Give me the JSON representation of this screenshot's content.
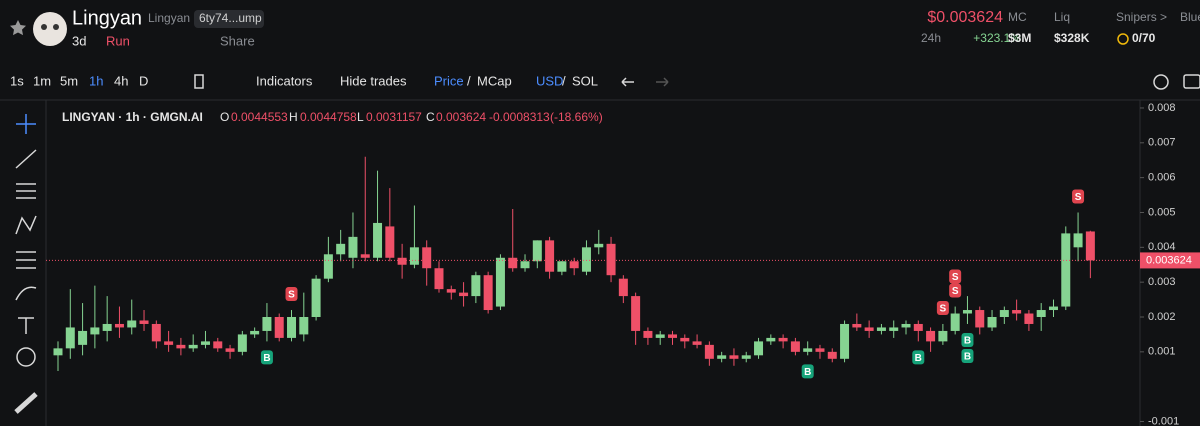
{
  "header": {
    "token_name": "Lingyan",
    "symbol": "Lingyan",
    "address": "6ty74...ump",
    "age": "3d",
    "run": "Run",
    "share": "Share",
    "price": "$0.003624",
    "change_period": "24h",
    "change": "+323.1%",
    "mc_label": "MC",
    "mc": "$3M",
    "liq_label": "Liq",
    "liq": "$328K",
    "snipers_label": "Snipers >",
    "snipers": "0/70",
    "blue_label": "Blue"
  },
  "toolbar": {
    "intervals": [
      "1s",
      "1m",
      "5m",
      "1h",
      "4h",
      "D"
    ],
    "indicators": "Indicators",
    "hide_trades": "Hide trades",
    "price": "Price",
    "separator": "/",
    "mcap": "MCap",
    "usd": "USD",
    "sol": "SOL"
  },
  "legend": {
    "title": "LINGYAN · 1h · GMGN.AI",
    "o_label": "O",
    "o": "0.0044553",
    "h_label": "H",
    "h": "0.0044758",
    "l_label": "L",
    "l": "0.0031157",
    "c_label": "C",
    "c": "0.003624",
    "change": "-0.0008313",
    "change_pct": "(-18.66%)"
  },
  "chart_data": {
    "type": "candlestick",
    "color_up": "#86d492",
    "color_down": "#ef5068",
    "open": [
      0.0009,
      0.0011,
      0.0012,
      0.0015,
      0.0016,
      0.0018,
      0.0017,
      0.0019,
      0.0018,
      0.0013,
      0.0012,
      0.0011,
      0.0012,
      0.0013,
      0.0011,
      0.001,
      0.0015,
      0.0016,
      0.002,
      0.0014,
      0.0015,
      0.002,
      0.0031,
      0.0038,
      0.0037,
      0.0038,
      0.0037,
      0.0046,
      0.0037,
      0.0035,
      0.004,
      0.0034,
      0.0028,
      0.0027,
      0.0026,
      0.0032,
      0.0023,
      0.0037,
      0.0034,
      0.0036,
      0.0042,
      0.0033,
      0.0036,
      0.0033,
      0.004,
      0.0041,
      0.0031,
      0.0026,
      0.0016,
      0.0014,
      0.0015,
      0.0014,
      0.0013,
      0.0012,
      0.0008,
      0.0009,
      0.0008,
      0.0009,
      0.0013,
      0.0014,
      0.0013,
      0.001,
      0.0011,
      0.001,
      0.0008,
      0.0018,
      0.0017,
      0.0016,
      0.0016,
      0.0017,
      0.0018,
      0.0016,
      0.0013,
      0.0016,
      0.0021,
      0.0022,
      0.0017,
      0.002,
      0.0022,
      0.0021,
      0.002,
      0.0022,
      0.0023,
      0.004,
      0.0044553
    ],
    "high": [
      0.0013,
      0.0028,
      0.0024,
      0.0029,
      0.0026,
      0.0023,
      0.0025,
      0.0022,
      0.0019,
      0.0016,
      0.0014,
      0.0015,
      0.0016,
      0.0014,
      0.0012,
      0.0016,
      0.0017,
      0.0024,
      0.0021,
      0.0022,
      0.0027,
      0.0032,
      0.0043,
      0.0045,
      0.005,
      0.0066,
      0.0062,
      0.0057,
      0.0041,
      0.0052,
      0.0042,
      0.0036,
      0.0029,
      0.003,
      0.0033,
      0.0033,
      0.0038,
      0.0051,
      0.0038,
      0.0042,
      0.0043,
      0.0036,
      0.0037,
      0.0042,
      0.0045,
      0.0043,
      0.0032,
      0.0027,
      0.0017,
      0.0016,
      0.0016,
      0.0015,
      0.0015,
      0.0013,
      0.001,
      0.0011,
      0.001,
      0.0014,
      0.0015,
      0.0015,
      0.0014,
      0.0013,
      0.0012,
      0.0011,
      0.0019,
      0.0021,
      0.0019,
      0.0018,
      0.0019,
      0.0019,
      0.0019,
      0.0017,
      0.0018,
      0.0023,
      0.0026,
      0.0023,
      0.0022,
      0.0023,
      0.0025,
      0.0022,
      0.0024,
      0.0025,
      0.0046,
      0.005,
      0.0044758
    ],
    "low": [
      0.00045,
      0.0008,
      0.0009,
      0.0011,
      0.0013,
      0.0014,
      0.0015,
      0.0016,
      0.0011,
      0.001,
      0.0009,
      0.001,
      0.0011,
      0.001,
      0.0008,
      0.0009,
      0.0014,
      0.0013,
      0.0013,
      0.0013,
      0.0013,
      0.0019,
      0.003,
      0.0036,
      0.0034,
      0.0036,
      0.0036,
      0.0036,
      0.0031,
      0.0034,
      0.0029,
      0.0027,
      0.0025,
      0.0023,
      0.0024,
      0.0021,
      0.0022,
      0.0033,
      0.0033,
      0.0034,
      0.0031,
      0.0032,
      0.0032,
      0.0032,
      0.0038,
      0.003,
      0.0024,
      0.0012,
      0.0012,
      0.0012,
      0.0012,
      0.0011,
      0.0011,
      0.0006,
      0.0007,
      0.0006,
      0.0007,
      0.0008,
      0.0012,
      0.0011,
      0.0009,
      0.0009,
      0.0008,
      0.0007,
      0.0007,
      0.0016,
      0.0014,
      0.0015,
      0.0014,
      0.0015,
      0.0013,
      0.001,
      0.0012,
      0.0015,
      0.0018,
      0.0015,
      0.0016,
      0.0018,
      0.0019,
      0.0016,
      0.0016,
      0.002,
      0.0022,
      0.0036,
      0.0031157
    ],
    "close": [
      0.0011,
      0.0017,
      0.0016,
      0.0017,
      0.0018,
      0.0017,
      0.0019,
      0.0018,
      0.0013,
      0.0012,
      0.0011,
      0.0012,
      0.0013,
      0.0011,
      0.001,
      0.0015,
      0.0016,
      0.002,
      0.0014,
      0.002,
      0.002,
      0.0031,
      0.0038,
      0.0041,
      0.0043,
      0.0037,
      0.0047,
      0.0037,
      0.0035,
      0.004,
      0.0034,
      0.0028,
      0.0027,
      0.0026,
      0.0032,
      0.0022,
      0.0037,
      0.0034,
      0.0036,
      0.0042,
      0.0033,
      0.0036,
      0.0034,
      0.004,
      0.0041,
      0.0032,
      0.0026,
      0.0016,
      0.0014,
      0.0015,
      0.0014,
      0.0013,
      0.0012,
      0.0008,
      0.0009,
      0.0008,
      0.0009,
      0.0013,
      0.0014,
      0.0013,
      0.001,
      0.0011,
      0.001,
      0.0008,
      0.0018,
      0.0017,
      0.0016,
      0.0017,
      0.0017,
      0.0018,
      0.0016,
      0.0013,
      0.0016,
      0.0021,
      0.0022,
      0.0017,
      0.002,
      0.0022,
      0.0021,
      0.0018,
      0.0022,
      0.0023,
      0.0044,
      0.0044,
      0.003624
    ],
    "ylim": [
      -0.0011,
      0.0082
    ],
    "yticks": [
      0.008,
      0.007,
      0.006,
      0.005,
      0.004,
      0.003,
      0.002,
      0.001,
      -0.001
    ],
    "last_price": 0.003624,
    "markers": [
      {
        "label": "B",
        "candle": 17,
        "side": "below"
      },
      {
        "label": "S",
        "candle": 19,
        "side": "above"
      },
      {
        "label": "B",
        "candle": 61,
        "side": "below"
      },
      {
        "label": "B",
        "candle": 70,
        "side": "below"
      },
      {
        "label": "S",
        "candle": 72,
        "side": "above"
      },
      {
        "label": "B",
        "candle": 74,
        "side": "below"
      },
      {
        "label": "S",
        "candle": 73,
        "side": "above"
      },
      {
        "label": "B",
        "candle": 74,
        "side": "below2"
      },
      {
        "label": "S",
        "candle": 73,
        "side": "above2"
      },
      {
        "label": "S",
        "candle": 83,
        "side": "above"
      }
    ]
  }
}
